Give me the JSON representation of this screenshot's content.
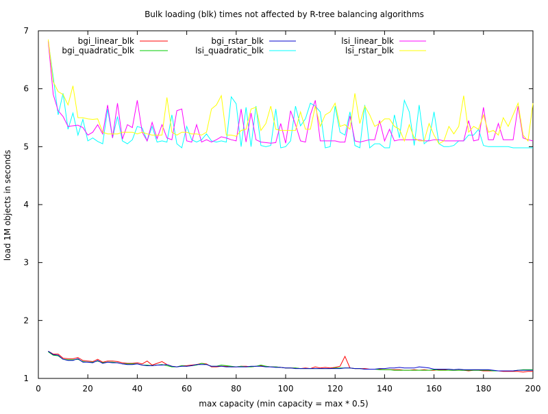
{
  "chart_data": {
    "type": "line",
    "title": "Bulk loading (blk) times not affected by R-tree balancing algorithms",
    "xlabel": "max capacity (min capacity = max * 0.5)",
    "ylabel": "load 1M objects in seconds",
    "xlim": [
      0,
      200
    ],
    "ylim": [
      1,
      7
    ],
    "grid": false,
    "legend_position": "top",
    "x_ticks": [
      0,
      20,
      40,
      60,
      80,
      100,
      120,
      140,
      160,
      180,
      200
    ],
    "y_ticks": [
      1,
      2,
      3,
      4,
      5,
      6,
      7
    ],
    "x": [
      4,
      6,
      8,
      10,
      12,
      14,
      16,
      18,
      20,
      22,
      24,
      26,
      28,
      30,
      32,
      34,
      36,
      38,
      40,
      42,
      44,
      46,
      48,
      50,
      52,
      54,
      56,
      58,
      60,
      62,
      64,
      66,
      68,
      70,
      72,
      74,
      76,
      78,
      80,
      82,
      84,
      86,
      88,
      90,
      92,
      94,
      96,
      98,
      100,
      102,
      104,
      106,
      108,
      110,
      112,
      114,
      116,
      118,
      120,
      122,
      124,
      126,
      128,
      130,
      132,
      134,
      136,
      138,
      140,
      142,
      144,
      146,
      148,
      150,
      152,
      154,
      156,
      158,
      160,
      162,
      164,
      166,
      168,
      170,
      172,
      174,
      176,
      178,
      180,
      182,
      184,
      186,
      188,
      190,
      192,
      194,
      196,
      198,
      200
    ],
    "series": [
      {
        "name": "bgi_linear_blk",
        "color": "#ff0000",
        "values": [
          1.47,
          1.42,
          1.42,
          1.35,
          1.34,
          1.34,
          1.36,
          1.31,
          1.3,
          1.29,
          1.33,
          1.28,
          1.3,
          1.3,
          1.29,
          1.27,
          1.26,
          1.26,
          1.27,
          1.25,
          1.3,
          1.23,
          1.26,
          1.29,
          1.24,
          1.21,
          1.2,
          1.22,
          1.22,
          1.23,
          1.24,
          1.26,
          1.25,
          1.2,
          1.2,
          1.21,
          1.21,
          1.2,
          1.2,
          1.21,
          1.21,
          1.2,
          1.21,
          1.22,
          1.21,
          1.2,
          1.2,
          1.19,
          1.18,
          1.18,
          1.18,
          1.17,
          1.18,
          1.17,
          1.2,
          1.18,
          1.19,
          1.18,
          1.19,
          1.21,
          1.38,
          1.18,
          1.17,
          1.17,
          1.17,
          1.16,
          1.16,
          1.16,
          1.15,
          1.15,
          1.15,
          1.15,
          1.14,
          1.14,
          1.15,
          1.14,
          1.15,
          1.14,
          1.14,
          1.15,
          1.15,
          1.14,
          1.14,
          1.14,
          1.14,
          1.13,
          1.14,
          1.14,
          1.13,
          1.13,
          1.13,
          1.13,
          1.12,
          1.12,
          1.12,
          1.12,
          1.11,
          1.12,
          1.12
        ]
      },
      {
        "name": "bgi_quadratic_blk",
        "color": "#00cc00",
        "values": [
          1.46,
          1.4,
          1.39,
          1.33,
          1.32,
          1.32,
          1.33,
          1.29,
          1.28,
          1.28,
          1.3,
          1.27,
          1.28,
          1.28,
          1.27,
          1.25,
          1.25,
          1.25,
          1.25,
          1.23,
          1.23,
          1.22,
          1.23,
          1.24,
          1.22,
          1.2,
          1.2,
          1.22,
          1.21,
          1.22,
          1.23,
          1.26,
          1.24,
          1.21,
          1.21,
          1.23,
          1.22,
          1.21,
          1.2,
          1.21,
          1.2,
          1.2,
          1.21,
          1.23,
          1.21,
          1.2,
          1.2,
          1.19,
          1.18,
          1.18,
          1.18,
          1.17,
          1.17,
          1.17,
          1.17,
          1.17,
          1.17,
          1.17,
          1.18,
          1.18,
          1.18,
          1.18,
          1.17,
          1.17,
          1.16,
          1.16,
          1.16,
          1.15,
          1.15,
          1.15,
          1.14,
          1.14,
          1.14,
          1.14,
          1.14,
          1.14,
          1.14,
          1.14,
          1.15,
          1.14,
          1.14,
          1.14,
          1.14,
          1.14,
          1.14,
          1.14,
          1.14,
          1.14,
          1.14,
          1.14,
          1.13,
          1.13,
          1.13,
          1.13,
          1.13,
          1.14,
          1.15,
          1.15,
          1.15
        ]
      },
      {
        "name": "bgi_rstar_blk",
        "color": "#0000cc",
        "values": [
          1.47,
          1.41,
          1.4,
          1.33,
          1.31,
          1.31,
          1.34,
          1.28,
          1.28,
          1.27,
          1.31,
          1.26,
          1.28,
          1.27,
          1.27,
          1.25,
          1.24,
          1.24,
          1.25,
          1.23,
          1.22,
          1.22,
          1.23,
          1.23,
          1.24,
          1.21,
          1.2,
          1.21,
          1.21,
          1.22,
          1.24,
          1.24,
          1.24,
          1.21,
          1.21,
          1.21,
          1.2,
          1.2,
          1.2,
          1.2,
          1.2,
          1.21,
          1.21,
          1.21,
          1.2,
          1.2,
          1.19,
          1.19,
          1.18,
          1.18,
          1.17,
          1.17,
          1.17,
          1.17,
          1.17,
          1.17,
          1.17,
          1.17,
          1.17,
          1.17,
          1.18,
          1.18,
          1.17,
          1.17,
          1.16,
          1.16,
          1.16,
          1.17,
          1.17,
          1.18,
          1.18,
          1.19,
          1.18,
          1.18,
          1.18,
          1.2,
          1.19,
          1.18,
          1.16,
          1.16,
          1.16,
          1.16,
          1.15,
          1.16,
          1.15,
          1.15,
          1.15,
          1.15,
          1.15,
          1.15,
          1.14,
          1.13,
          1.13,
          1.13,
          1.13,
          1.14,
          1.14,
          1.14,
          1.14
        ]
      },
      {
        "name": "lsi_quadratic_blk",
        "color": "#00ffff",
        "values": [
          6.82,
          6.2,
          5.55,
          5.92,
          5.3,
          5.58,
          5.2,
          5.47,
          5.1,
          5.15,
          5.09,
          5.05,
          5.65,
          5.15,
          5.52,
          5.1,
          5.05,
          5.12,
          5.35,
          5.32,
          5.1,
          5.35,
          5.08,
          5.1,
          5.08,
          5.55,
          5.05,
          4.98,
          5.35,
          5.12,
          5.08,
          5.12,
          5.22,
          5.1,
          5.08,
          5.1,
          5.08,
          5.86,
          5.74,
          5.0,
          5.68,
          5.0,
          5.7,
          5.02,
          5.0,
          5.02,
          5.65,
          4.98,
          5.0,
          5.1,
          5.7,
          5.36,
          5.48,
          5.75,
          5.7,
          5.6,
          4.98,
          5.0,
          5.7,
          5.25,
          5.2,
          5.6,
          5.02,
          4.98,
          5.72,
          4.98,
          5.05,
          5.05,
          4.98,
          4.98,
          5.55,
          5.15,
          5.8,
          5.6,
          5.02,
          5.72,
          5.05,
          5.12,
          5.6,
          5.05,
          5.0,
          5.0,
          5.02,
          5.1,
          5.1,
          5.2,
          5.2,
          5.3,
          5.02,
          5.0,
          5.0,
          5.0,
          5.0,
          5.0,
          4.98,
          4.98,
          4.98,
          4.98,
          4.98
        ]
      },
      {
        "name": "lsi_linear_blk",
        "color": "#ff00ff",
        "values": [
          6.82,
          5.9,
          5.62,
          5.52,
          5.35,
          5.36,
          5.37,
          5.33,
          5.2,
          5.25,
          5.38,
          5.22,
          5.72,
          5.15,
          5.75,
          5.13,
          5.38,
          5.33,
          5.8,
          5.25,
          5.1,
          5.42,
          5.14,
          5.38,
          5.15,
          5.12,
          5.62,
          5.65,
          5.1,
          5.08,
          5.38,
          5.08,
          5.12,
          5.08,
          5.12,
          5.17,
          5.15,
          5.12,
          5.1,
          5.65,
          5.08,
          5.58,
          5.12,
          5.08,
          5.07,
          5.06,
          5.07,
          5.4,
          5.06,
          5.62,
          5.38,
          5.1,
          5.08,
          5.55,
          5.8,
          5.1,
          5.1,
          5.1,
          5.1,
          5.08,
          5.08,
          5.53,
          5.1,
          5.08,
          5.1,
          5.12,
          5.12,
          5.45,
          5.1,
          5.3,
          5.1,
          5.12,
          5.12,
          5.12,
          5.12,
          5.12,
          5.1,
          5.1,
          5.12,
          5.12,
          5.1,
          5.1,
          5.1,
          5.1,
          5.1,
          5.45,
          5.1,
          5.12,
          5.68,
          5.12,
          5.12,
          5.4,
          5.12,
          5.12,
          5.12,
          5.7,
          5.15,
          5.12,
          5.1
        ]
      },
      {
        "name": "lsi_rstar_blk",
        "color": "#ffff00",
        "values": [
          6.85,
          6.12,
          5.95,
          5.9,
          5.72,
          6.05,
          5.5,
          5.5,
          5.48,
          5.47,
          5.48,
          5.25,
          5.22,
          5.22,
          5.22,
          5.25,
          5.25,
          5.25,
          5.22,
          5.25,
          5.22,
          5.2,
          5.2,
          5.2,
          5.85,
          5.25,
          5.2,
          5.25,
          5.25,
          5.22,
          5.22,
          5.2,
          5.25,
          5.65,
          5.72,
          5.88,
          5.2,
          5.2,
          5.18,
          5.28,
          5.3,
          5.65,
          5.68,
          5.28,
          5.4,
          5.7,
          5.3,
          5.28,
          5.28,
          5.28,
          5.28,
          5.6,
          5.3,
          5.3,
          5.7,
          5.35,
          5.55,
          5.6,
          5.75,
          5.35,
          5.38,
          5.3,
          5.92,
          5.4,
          5.7,
          5.55,
          5.35,
          5.4,
          5.48,
          5.48,
          5.35,
          5.3,
          5.1,
          5.38,
          5.15,
          5.1,
          5.1,
          5.4,
          5.2,
          5.05,
          5.1,
          5.35,
          5.22,
          5.35,
          5.88,
          5.25,
          5.35,
          5.3,
          5.55,
          5.25,
          5.28,
          5.2,
          5.5,
          5.35,
          5.55,
          5.75,
          5.2,
          5.1,
          5.75
        ]
      }
    ]
  }
}
